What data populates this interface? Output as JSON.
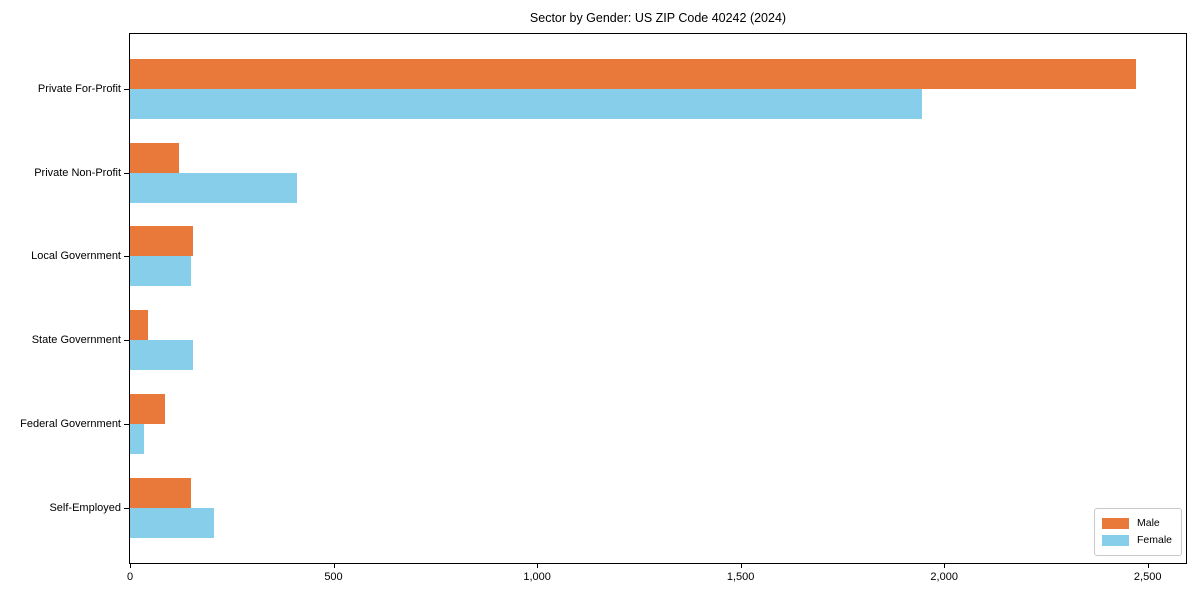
{
  "chart_data": {
    "type": "bar",
    "orientation": "horizontal",
    "title": "Sector by Gender: US ZIP Code 40242 (2024)",
    "categories": [
      "Private For-Profit",
      "Private Non-Profit",
      "Local Government",
      "State Government",
      "Federal Government",
      "Self-Employed"
    ],
    "series": [
      {
        "name": "Male",
        "color": "#e8793a",
        "values": [
          2470,
          120,
          155,
          45,
          85,
          150
        ]
      },
      {
        "name": "Female",
        "color": "#87ceeb",
        "values": [
          1945,
          410,
          150,
          155,
          35,
          205
        ]
      }
    ],
    "xlabel": "",
    "ylabel": "",
    "xlim": [
      0,
      2594
    ],
    "xticks": [
      0,
      500,
      1000,
      1500,
      2000,
      2500
    ],
    "xtick_labels": [
      "0",
      "500",
      "1,000",
      "1,500",
      "2,000",
      "2,500"
    ],
    "grid": false,
    "legend": {
      "position": "lower right"
    }
  }
}
